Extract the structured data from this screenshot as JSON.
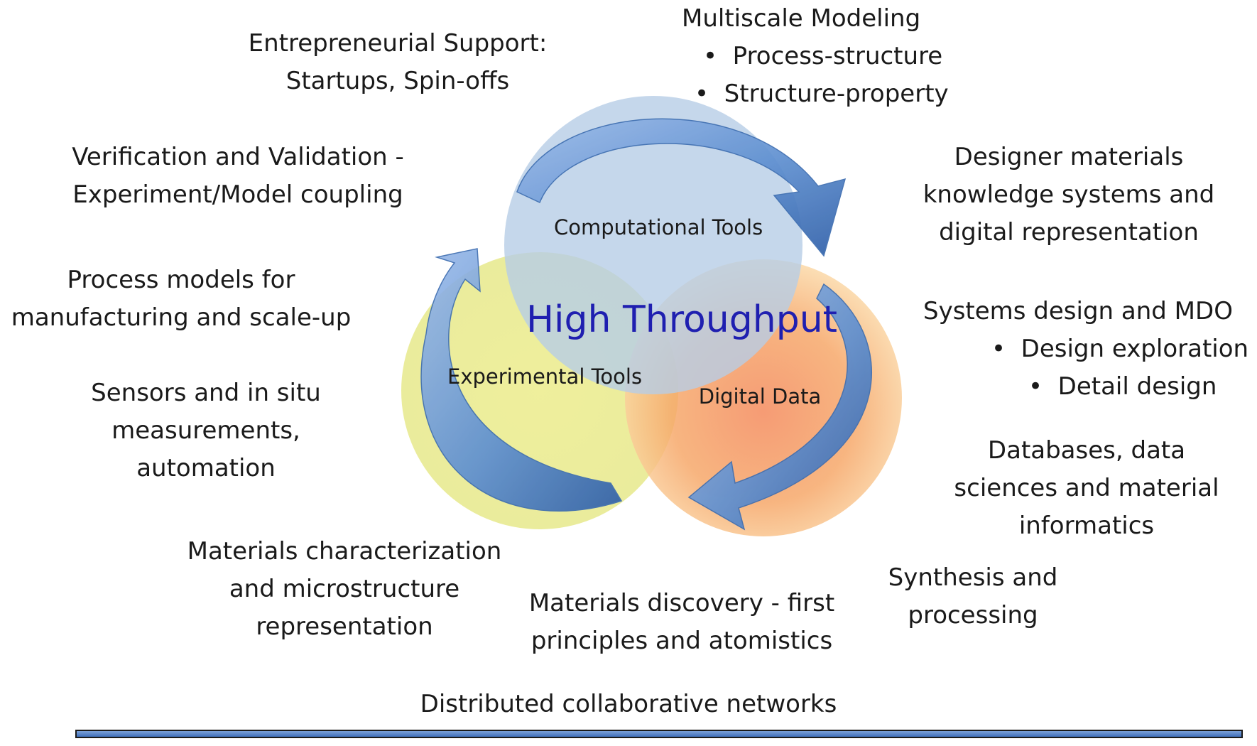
{
  "center_title": "High Throughput",
  "circles": {
    "computational": [
      "Computational",
      "Tools"
    ],
    "experimental": [
      "Experimental",
      "Tools"
    ],
    "digital": [
      "Digital Data"
    ]
  },
  "labels": {
    "entrepreneurial": [
      "Entrepreneurial Support:",
      "Startups, Spin-offs"
    ],
    "multiscale": {
      "title": "Multiscale Modeling",
      "bullets": [
        "Process-structure",
        "Structure-property"
      ]
    },
    "verification": [
      "Verification and Validation -",
      "Experiment/Model coupling"
    ],
    "designer": [
      "Designer materials",
      "knowledge systems and",
      "digital representation"
    ],
    "process_models": [
      "Process models for",
      "manufacturing and scale-up"
    ],
    "systems_design": {
      "title": "Systems design and MDO",
      "bullets": [
        "Design exploration",
        "Detail design"
      ]
    },
    "sensors": [
      "Sensors and in situ",
      "measurements,",
      "automation"
    ],
    "databases": [
      "Databases, data",
      "sciences and material",
      "informatics"
    ],
    "characterization": [
      "Materials characterization",
      "and microstructure",
      "representation"
    ],
    "synthesis": [
      "Synthesis and",
      "processing"
    ],
    "discovery": [
      "Materials discovery - first",
      "principles and atomistics"
    ],
    "networks": [
      "Distributed collaborative networks"
    ]
  },
  "colors": {
    "computational_circle": "#b7cde6",
    "experimental_circle": "#e6e882",
    "digital_circle": "#f59a5c",
    "arrow": "#5e8fd0",
    "center_title": "#1f1fb0",
    "bottom_bar": "#5a86c8"
  }
}
